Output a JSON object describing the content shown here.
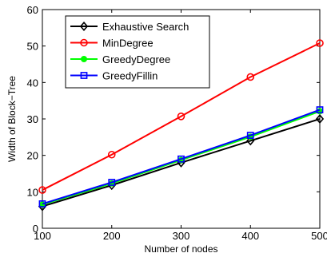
{
  "chart_data": {
    "type": "line",
    "title": "",
    "xlabel": "Number of nodes",
    "ylabel": "Width of Block−Tree",
    "x": [
      100,
      200,
      300,
      400,
      500
    ],
    "x_ticks": [
      "100",
      "200",
      "300",
      "400",
      "500"
    ],
    "y_ticks": [
      "0",
      "10",
      "20",
      "30",
      "40",
      "50",
      "60"
    ],
    "xlim": [
      100,
      500
    ],
    "ylim": [
      0,
      60
    ],
    "grid": false,
    "legend_position": "top-left",
    "series": [
      {
        "name": "Exhaustive Search",
        "values": [
          6,
          11.8,
          18,
          24,
          30
        ],
        "color": "#000000",
        "marker": "diamond"
      },
      {
        "name": "MinDegree",
        "values": [
          10.5,
          20.2,
          30.7,
          41.5,
          50.8
        ],
        "color": "#ff0000",
        "marker": "circle"
      },
      {
        "name": "GreedyDegree",
        "values": [
          6.5,
          12.3,
          18.7,
          25.1,
          32.1
        ],
        "color": "#00ff00",
        "marker": "circle-filled"
      },
      {
        "name": "GreedyFillin",
        "values": [
          6.7,
          12.6,
          19,
          25.5,
          32.5
        ],
        "color": "#0000ff",
        "marker": "square"
      }
    ]
  }
}
